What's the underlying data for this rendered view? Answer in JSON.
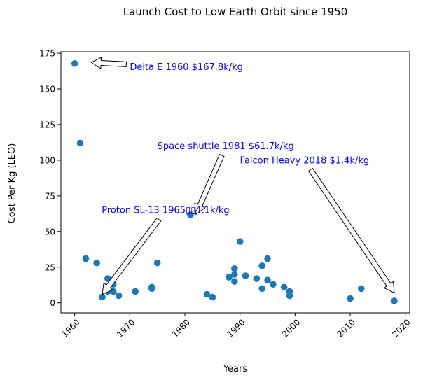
{
  "chart_data": {
    "type": "scatter",
    "title": "Launch Cost to Low Earth Orbit since 1950",
    "xlabel": "Years",
    "ylabel": "Cost Per Kg (LEO)",
    "xlim": [
      1957.5,
      2020.8
    ],
    "ylim": [
      -7,
      176
    ],
    "x_ticks": [
      1960,
      1970,
      1980,
      1990,
      2000,
      2010,
      2020
    ],
    "y_ticks": [
      0,
      25,
      50,
      75,
      100,
      125,
      150,
      175
    ],
    "x_tick_labels": [
      "1960",
      "1970",
      "1980",
      "1990",
      "2000",
      "2010",
      "2020"
    ],
    "y_tick_labels": [
      "0",
      "25",
      "50",
      "75",
      "100",
      "125",
      "150",
      "175"
    ],
    "x_tick_rotation": 45,
    "grid": false,
    "marker_color": "#1f77b4",
    "annotation_color": "#0000ff",
    "points": [
      {
        "x": 1960,
        "y": 167.8
      },
      {
        "x": 1961,
        "y": 112
      },
      {
        "x": 1962,
        "y": 31
      },
      {
        "x": 1964,
        "y": 28
      },
      {
        "x": 1965,
        "y": 4.1
      },
      {
        "x": 1966,
        "y": 17
      },
      {
        "x": 1966,
        "y": 8
      },
      {
        "x": 1967,
        "y": 13
      },
      {
        "x": 1967,
        "y": 8
      },
      {
        "x": 1968,
        "y": 5
      },
      {
        "x": 1971,
        "y": 8
      },
      {
        "x": 1974,
        "y": 11
      },
      {
        "x": 1974,
        "y": 10
      },
      {
        "x": 1975,
        "y": 28
      },
      {
        "x": 1981,
        "y": 61.7
      },
      {
        "x": 1984,
        "y": 6
      },
      {
        "x": 1985,
        "y": 4
      },
      {
        "x": 1988,
        "y": 18
      },
      {
        "x": 1989,
        "y": 24
      },
      {
        "x": 1989,
        "y": 20
      },
      {
        "x": 1989,
        "y": 15
      },
      {
        "x": 1990,
        "y": 43
      },
      {
        "x": 1991,
        "y": 19
      },
      {
        "x": 1993,
        "y": 17
      },
      {
        "x": 1994,
        "y": 26
      },
      {
        "x": 1994,
        "y": 10
      },
      {
        "x": 1995,
        "y": 31
      },
      {
        "x": 1995,
        "y": 16
      },
      {
        "x": 1996,
        "y": 13
      },
      {
        "x": 1998,
        "y": 11
      },
      {
        "x": 1999,
        "y": 8
      },
      {
        "x": 1999,
        "y": 5
      },
      {
        "x": 2010,
        "y": 3
      },
      {
        "x": 2012,
        "y": 10
      },
      {
        "x": 2018,
        "y": 1.4
      }
    ],
    "annotations": [
      {
        "text": "Delta E  1960 $167.8k/kg",
        "text_at": [
          1970,
          165.5
        ],
        "point_at": [
          1963,
          168.5
        ]
      },
      {
        "text": "Space shuttle 1981 $61.7k/kg",
        "text_at": [
          1975,
          110
        ],
        "point_at": [
          1982,
          62
        ]
      },
      {
        "text": "Falcon Heavy 2018 $1.4k/kg",
        "text_at": [
          1990,
          100
        ],
        "point_at": [
          2018,
          7
        ]
      },
      {
        "text": "Proton SL-13 1965▯▯4.1k/kg",
        "text_at": [
          1964.9,
          65
        ],
        "point_at": [
          1965,
          6
        ]
      }
    ]
  }
}
